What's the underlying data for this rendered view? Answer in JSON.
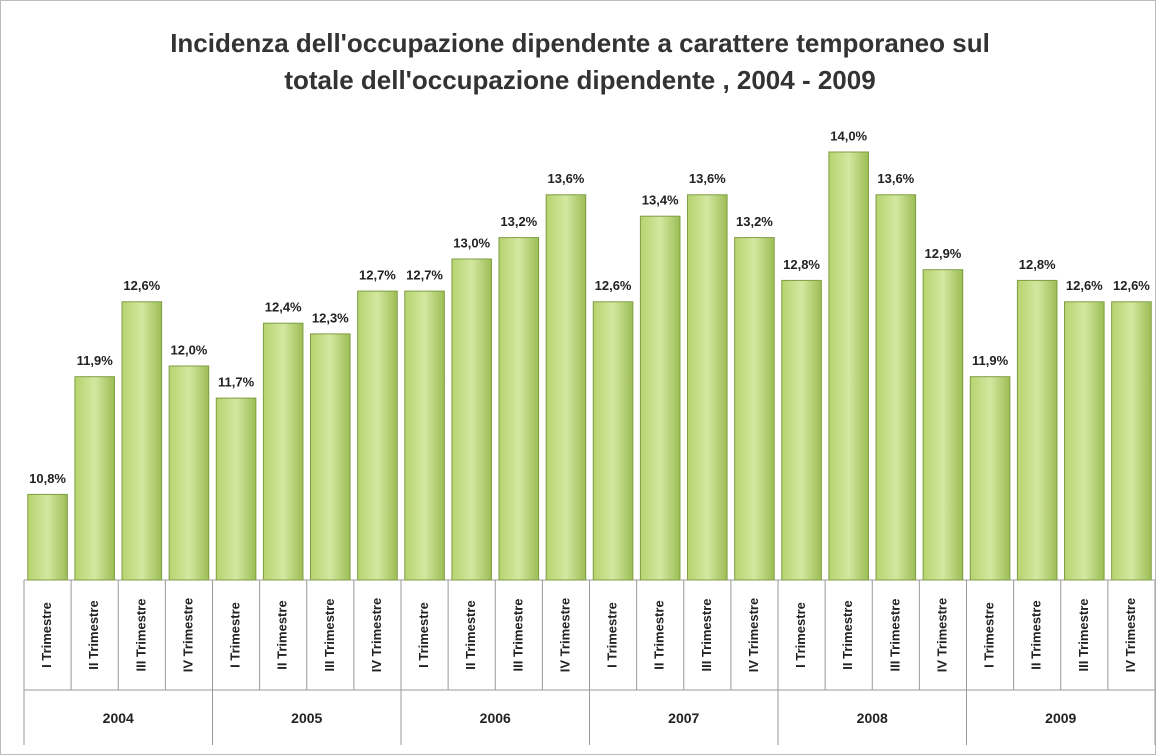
{
  "chart_data": {
    "type": "bar",
    "title": [
      "Incidenza dell'occupazione dipendente a carattere temporaneo sul",
      "totale dell'occupazione  dipendente , 2004 - 2009"
    ],
    "categories": [
      "I Trimestre",
      "II Trimestre",
      "III Trimestre",
      "IV Trimestre",
      "I Trimestre",
      "II Trimestre",
      "III Trimestre",
      "IV Trimestre",
      "I Trimestre",
      "II Trimestre",
      "III Trimestre",
      "IV Trimestre",
      "I Trimestre",
      "II Trimestre",
      "III Trimestre",
      "IV Trimestre",
      "I Trimestre",
      "II Trimestre",
      "III Trimestre",
      "IV Trimestre",
      "I Trimestre",
      "II Trimestre",
      "III Trimestre",
      "IV Trimestre"
    ],
    "groups": [
      "2004",
      "2005",
      "2006",
      "2007",
      "2008",
      "2009"
    ],
    "values": [
      10.8,
      11.9,
      12.6,
      12.0,
      11.7,
      12.4,
      12.3,
      12.7,
      12.7,
      13.0,
      13.2,
      13.6,
      12.6,
      13.4,
      13.6,
      13.2,
      12.8,
      14.0,
      13.6,
      12.9,
      11.9,
      12.8,
      12.6,
      12.6
    ],
    "value_labels": [
      "10,8%",
      "11,9%",
      "12,6%",
      "12,0%",
      "11,7%",
      "12,4%",
      "12,3%",
      "12,7%",
      "12,7%",
      "13,0%",
      "13,2%",
      "13,6%",
      "12,6%",
      "13,4%",
      "13,6%",
      "13,2%",
      "12,8%",
      "14,0%",
      "13,6%",
      "12,9%",
      "11,9%",
      "12,8%",
      "12,6%",
      "12,6%"
    ],
    "color": "#9bbb59",
    "ylim": [
      10,
      14.5
    ]
  }
}
